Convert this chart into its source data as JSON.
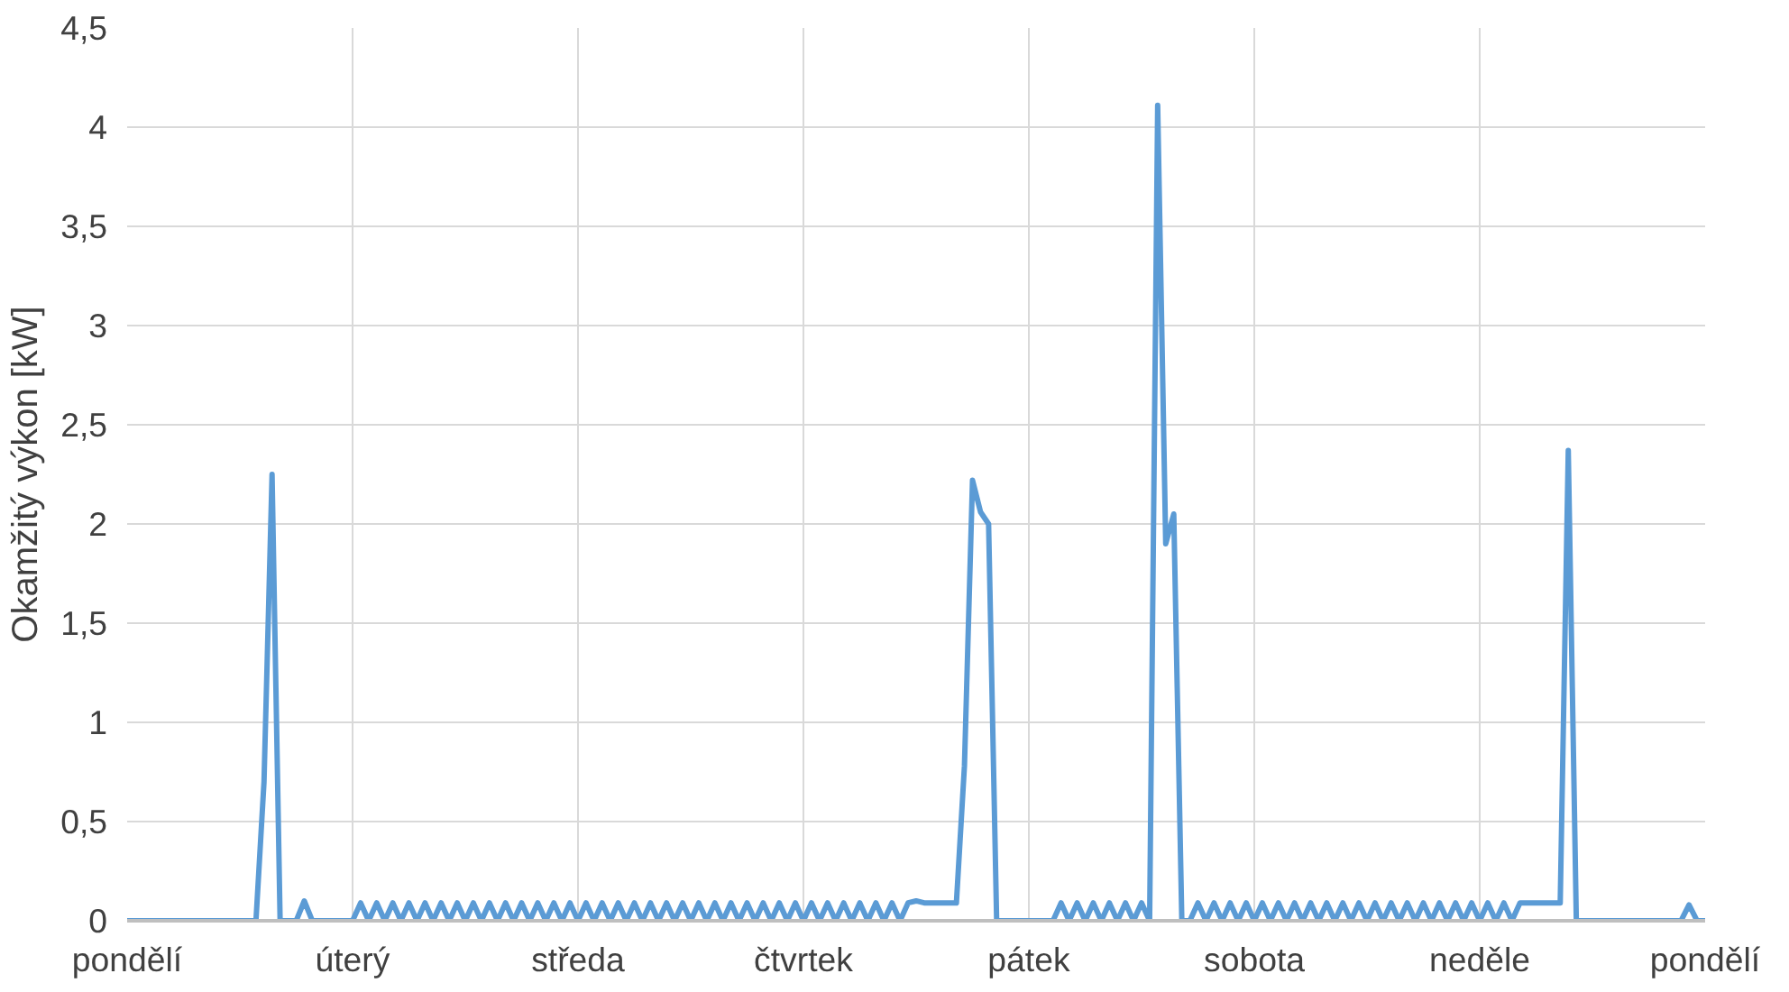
{
  "chart_data": {
    "type": "line",
    "ylabel": "Okamžitý výkon [kW]",
    "categories": [
      "pondělí",
      null,
      null,
      null,
      null,
      null,
      null,
      null,
      null,
      null,
      null,
      null,
      null,
      null,
      null,
      null,
      null,
      null,
      null,
      null,
      null,
      null,
      null,
      null,
      null,
      null,
      null,
      null,
      "úterý",
      null,
      null,
      null,
      null,
      null,
      null,
      null,
      null,
      null,
      null,
      null,
      null,
      null,
      null,
      null,
      null,
      null,
      null,
      null,
      null,
      null,
      null,
      null,
      null,
      null,
      null,
      null,
      "středa",
      null,
      null,
      null,
      null,
      null,
      null,
      null,
      null,
      null,
      null,
      null,
      null,
      null,
      null,
      null,
      null,
      null,
      null,
      null,
      null,
      null,
      null,
      null,
      null,
      null,
      null,
      null,
      "čtvrtek",
      null,
      null,
      null,
      null,
      null,
      null,
      null,
      null,
      null,
      null,
      null,
      null,
      null,
      null,
      null,
      null,
      null,
      null,
      null,
      null,
      null,
      null,
      null,
      null,
      null,
      null,
      null,
      "pátek",
      null,
      null,
      null,
      null,
      null,
      null,
      null,
      null,
      null,
      null,
      null,
      null,
      null,
      null,
      null,
      null,
      null,
      null,
      null,
      null,
      null,
      null,
      null,
      null,
      null,
      null,
      null,
      "sobota",
      null,
      null,
      null,
      null,
      null,
      null,
      null,
      null,
      null,
      null,
      null,
      null,
      null,
      null,
      null,
      null,
      null,
      null,
      null,
      null,
      null,
      null,
      null,
      null,
      null,
      null,
      null,
      "neděle",
      null,
      null,
      null,
      null,
      null,
      null,
      null,
      null,
      null,
      null,
      null,
      null,
      null,
      null,
      null,
      null,
      null,
      null,
      null,
      null,
      null,
      null,
      null,
      null,
      null,
      null,
      null,
      "pondělí"
    ],
    "ylim": [
      0,
      4.5
    ],
    "yticks": [
      0,
      {
        "value": 0.5,
        "label": "0,5"
      },
      1,
      {
        "value": 1.5,
        "label": "1,5"
      },
      2,
      {
        "value": 2.5,
        "label": "2,5"
      },
      3,
      {
        "value": 3.5,
        "label": "3,5"
      },
      4,
      {
        "value": 4.5,
        "label": "4,5"
      }
    ],
    "grid": true,
    "line_style": "solid",
    "series": [
      {
        "color": "#5b9bd5",
        "values": [
          0,
          0,
          0,
          0,
          0,
          0,
          0,
          0,
          0,
          0,
          0,
          0,
          0,
          0,
          0,
          0,
          0,
          0.7,
          2.25,
          0,
          0,
          0,
          0.1,
          0,
          0,
          0,
          0,
          0,
          0,
          0.09,
          0,
          0.09,
          0,
          0.09,
          0,
          0.09,
          0,
          0.09,
          0,
          0.09,
          0,
          0.09,
          0,
          0.09,
          0,
          0.09,
          0,
          0.09,
          0,
          0.09,
          0,
          0.09,
          0,
          0.09,
          0,
          0.09,
          0,
          0.09,
          0,
          0.09,
          0,
          0.09,
          0,
          0.09,
          0,
          0.09,
          0,
          0.09,
          0,
          0.09,
          0,
          0.09,
          0,
          0.09,
          0,
          0.09,
          0,
          0.09,
          0,
          0.09,
          0,
          0.09,
          0,
          0.09,
          0,
          0.09,
          0,
          0.09,
          0,
          0.09,
          0,
          0.09,
          0,
          0.09,
          0,
          0.09,
          0,
          0.09,
          0.1,
          0.09,
          0.09,
          0.09,
          0.09,
          0.09,
          0.78,
          2.22,
          2.06,
          2.0,
          0,
          0,
          0,
          0,
          0,
          0,
          0,
          0,
          0.09,
          0,
          0.09,
          0,
          0.09,
          0,
          0.09,
          0,
          0.09,
          0,
          0.09,
          0,
          4.11,
          1.9,
          2.05,
          0,
          0,
          0.09,
          0,
          0.09,
          0,
          0.09,
          0,
          0.09,
          0,
          0.09,
          0,
          0.09,
          0,
          0.09,
          0,
          0.09,
          0,
          0.09,
          0,
          0.09,
          0,
          0.09,
          0,
          0.09,
          0,
          0.09,
          0,
          0.09,
          0,
          0.09,
          0,
          0.09,
          0,
          0.09,
          0,
          0.09,
          0,
          0.09,
          0,
          0.09,
          0,
          0.09,
          0.09,
          0.09,
          0.09,
          0.09,
          0.09,
          2.37,
          0,
          0,
          0,
          0,
          0,
          0,
          0,
          0,
          0,
          0,
          0,
          0,
          0,
          0,
          0.08,
          0,
          0
        ]
      }
    ]
  }
}
